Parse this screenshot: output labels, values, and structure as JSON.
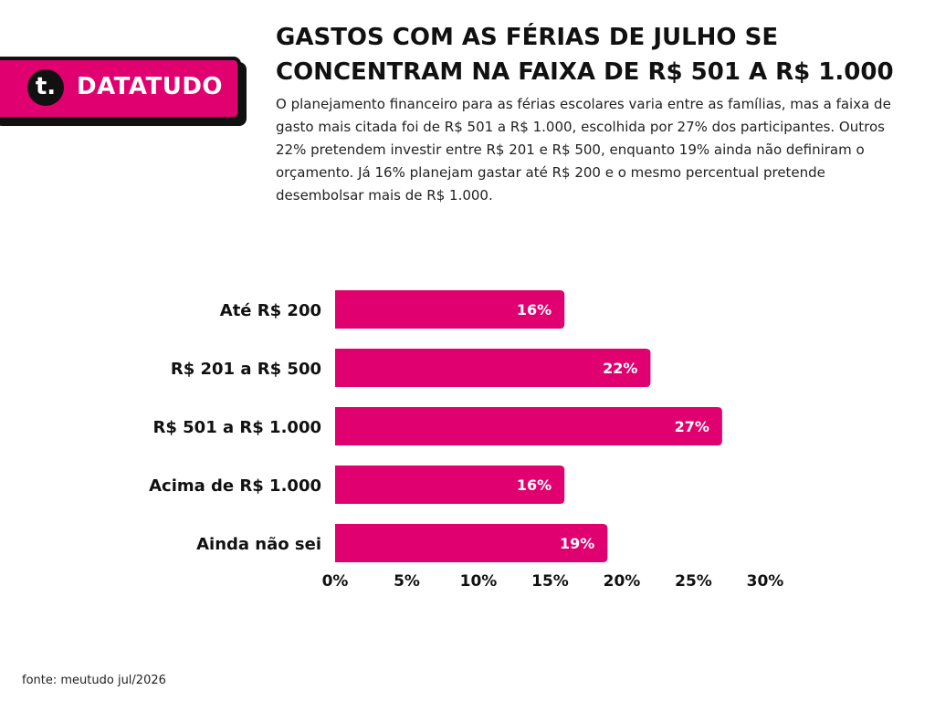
{
  "brand": {
    "logo_letter": "t.",
    "name": "DATATUDO",
    "color": "#e0006f"
  },
  "header": {
    "title": "GASTOS COM AS FÉRIAS DE JULHO SE CONCENTRAM NA FAIXA DE R$ 501 A R$ 1.000",
    "subtitle": "O planejamento financeiro para as férias escolares varia entre as famílias, mas a faixa de gasto mais citada foi de R$ 501 a R$ 1.000, escolhida por 27% dos participantes. Outros 22% pretendem investir entre R$ 201 e R$ 500, enquanto 19% ainda não definiram o orçamento. Já 16% planejam gastar até R$ 200 e o mesmo percentual pretende desembolsar mais de R$ 1.000."
  },
  "chart_data": {
    "type": "bar",
    "orientation": "horizontal",
    "categories": [
      "Até R$ 200",
      "R$ 201 a R$ 500",
      "R$ 501 a R$ 1.000",
      "Acima de R$ 1.000",
      "Ainda não sei"
    ],
    "values": [
      16,
      22,
      27,
      16,
      19
    ],
    "data_labels": [
      "16%",
      "22%",
      "27%",
      "16%",
      "19%"
    ],
    "xlim": [
      0,
      30
    ],
    "x_ticks": [
      0,
      5,
      10,
      15,
      20,
      25,
      30
    ],
    "x_tick_labels": [
      "0%",
      "5%",
      "10%",
      "15%",
      "20%",
      "25%",
      "30%"
    ],
    "grid": false,
    "legend": "none",
    "bar_color": "#e0006f"
  },
  "footer": {
    "source": "fonte: meutudo jul/2026"
  }
}
